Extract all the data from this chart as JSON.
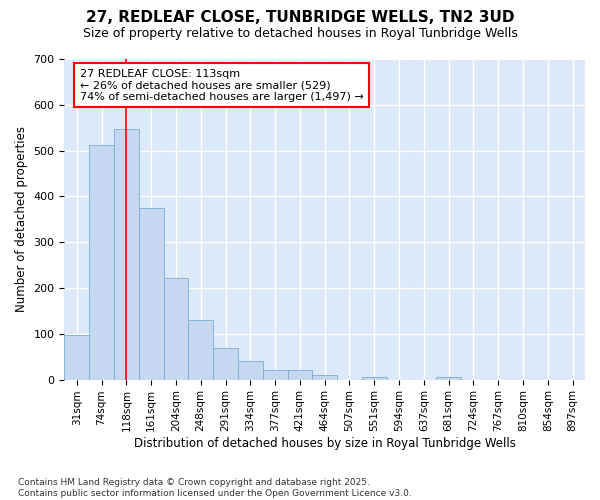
{
  "title": "27, REDLEAF CLOSE, TUNBRIDGE WELLS, TN2 3UD",
  "subtitle": "Size of property relative to detached houses in Royal Tunbridge Wells",
  "xlabel": "Distribution of detached houses by size in Royal Tunbridge Wells",
  "ylabel": "Number of detached properties",
  "bar_values": [
    98,
    513,
    547,
    375,
    222,
    130,
    70,
    40,
    20,
    22,
    10,
    0,
    5,
    0,
    0,
    5,
    0,
    0,
    0,
    0,
    0
  ],
  "bar_color": "#c5d8f0",
  "bar_edge_color": "#7aadd4",
  "x_labels": [
    "31sqm",
    "74sqm",
    "118sqm",
    "161sqm",
    "204sqm",
    "248sqm",
    "291sqm",
    "334sqm",
    "377sqm",
    "421sqm",
    "464sqm",
    "507sqm",
    "551sqm",
    "594sqm",
    "637sqm",
    "681sqm",
    "724sqm",
    "767sqm",
    "810sqm",
    "854sqm",
    "897sqm"
  ],
  "ylim_max": 700,
  "yticks": [
    0,
    100,
    200,
    300,
    400,
    500,
    600,
    700
  ],
  "red_line_x": 2.0,
  "annotation_line1": "27 REDLEAF CLOSE: 113sqm",
  "annotation_line2": "← 26% of detached houses are smaller (529)",
  "annotation_line3": "74% of semi-detached houses are larger (1,497) →",
  "plot_bg_color": "#dce9f8",
  "fig_bg_color": "#ffffff",
  "grid_color": "#ffffff",
  "footer_text": "Contains HM Land Registry data © Crown copyright and database right 2025.\nContains public sector information licensed under the Open Government Licence v3.0."
}
